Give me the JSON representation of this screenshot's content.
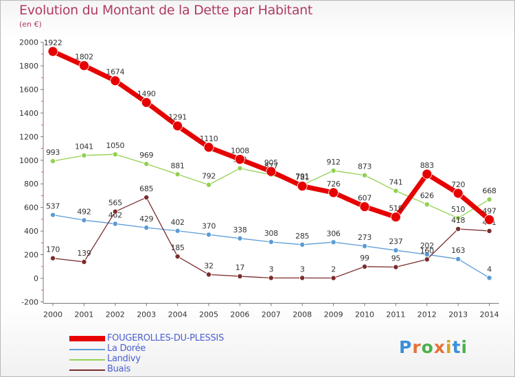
{
  "header": {
    "title": "Evolution du Montant de la Dette par Habitant",
    "unit": "(en €)"
  },
  "logo": {
    "text": "Proxiti",
    "colors": [
      "#3a8fd8",
      "#e8703a",
      "#4bb04b",
      "#e8703a",
      "#d8a020",
      "#3a8fd8",
      "#4bb04b"
    ]
  },
  "chart_data": {
    "type": "line",
    "x": [
      2000,
      2001,
      2002,
      2003,
      2004,
      2005,
      2006,
      2007,
      2008,
      2009,
      2010,
      2011,
      2012,
      2013,
      2014
    ],
    "ylim": [
      -200,
      2000
    ],
    "yticks": [
      -200,
      0,
      200,
      400,
      600,
      800,
      1000,
      1200,
      1400,
      1600,
      1800,
      2000
    ],
    "grid": false,
    "legend_position": "bottom-left",
    "series": [
      {
        "name": "FOUGEROLLES-DU-PLESSIS",
        "color": "#e60000",
        "emphasis": true,
        "values": [
          1922,
          1802,
          1674,
          1490,
          1291,
          1110,
          1008,
          905,
          781,
          726,
          607,
          519,
          883,
          720,
          497
        ]
      },
      {
        "name": "La Dorée",
        "color": "#5b9bd5",
        "emphasis": false,
        "values": [
          537,
          492,
          462,
          429,
          402,
          370,
          338,
          308,
          285,
          306,
          273,
          237,
          202,
          163,
          4
        ]
      },
      {
        "name": "Landivy",
        "color": "#92d050",
        "emphasis": false,
        "values": [
          993,
          1041,
          1050,
          969,
          881,
          792,
          932,
          877,
          791,
          912,
          873,
          741,
          626,
          510,
          668
        ]
      },
      {
        "name": "Buais",
        "color": "#7b2c2c",
        "emphasis": false,
        "values": [
          170,
          139,
          565,
          685,
          185,
          32,
          17,
          3,
          3,
          2,
          99,
          95,
          160,
          418,
          401
        ]
      }
    ]
  }
}
